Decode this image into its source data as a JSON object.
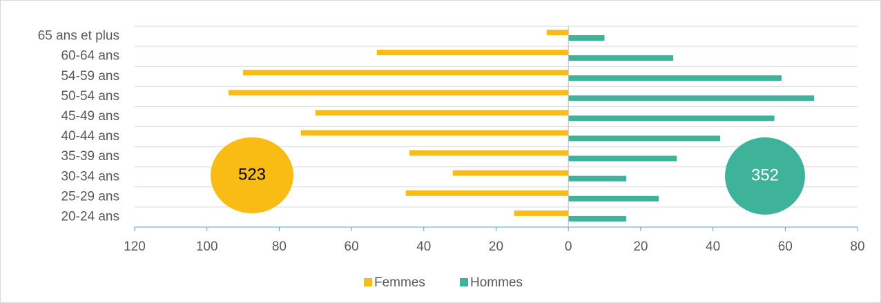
{
  "chart_data": {
    "type": "pyramid",
    "categories": [
      "65 ans et plus",
      "60-64 ans",
      "54-59 ans",
      "50-54 ans",
      "45-49 ans",
      "40-44 ans",
      "35-39 ans",
      "30-34 ans",
      "25-29 ans",
      "20-24 ans"
    ],
    "series": [
      {
        "name": "Femmes",
        "color": "#f9bc15",
        "values": [
          -6,
          -53,
          -90,
          -94,
          -70,
          -74,
          -44,
          -32,
          -45,
          -15
        ]
      },
      {
        "name": "Hommes",
        "color": "#3fb39a",
        "values": [
          10,
          29,
          59,
          68,
          57,
          42,
          30,
          16,
          25,
          16
        ]
      }
    ],
    "xlim": [
      -120,
      80
    ],
    "xticks": [
      {
        "value": -120,
        "label": "120"
      },
      {
        "value": -100,
        "label": "100"
      },
      {
        "value": -80,
        "label": "80"
      },
      {
        "value": -60,
        "label": "60"
      },
      {
        "value": -40,
        "label": "40"
      },
      {
        "value": -20,
        "label": "20"
      },
      0,
      20,
      40,
      60,
      80
    ],
    "grid": true,
    "legend": "bottom",
    "annotations": [
      {
        "text": "523",
        "color": "#f9bc15",
        "text_color": "#000000"
      },
      {
        "text": "352",
        "color": "#3fb39a",
        "text_color": "#ffffff"
      }
    ]
  }
}
